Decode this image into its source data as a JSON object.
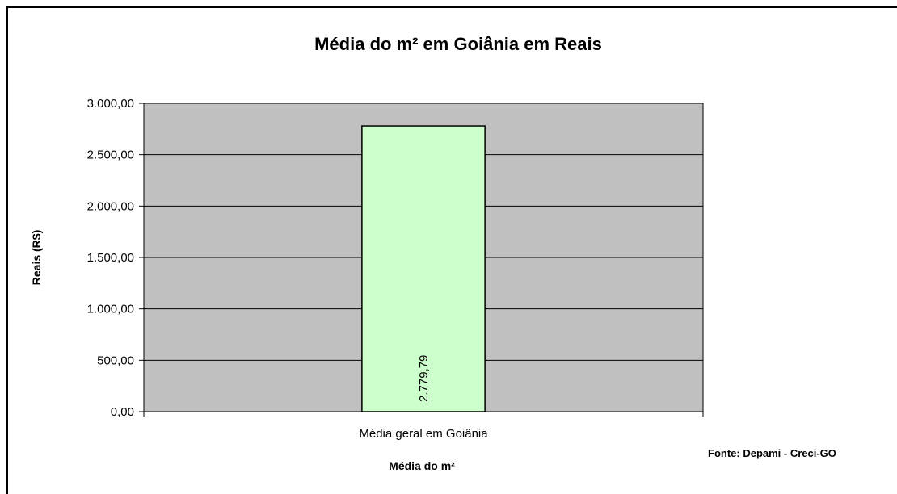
{
  "chart_data": {
    "type": "bar",
    "title": "Média do m² em Goiânia em Reais",
    "categories": [
      "Média geral em Goiânia"
    ],
    "series": [
      {
        "values": [
          2779.79
        ]
      }
    ],
    "data_labels": [
      "2.779,79"
    ],
    "xlabel": "Média do m²",
    "ylabel": "Reais (R$)",
    "ylim": [
      0,
      3000
    ],
    "yticks": [
      0,
      500,
      1000,
      1500,
      2000,
      2500,
      3000
    ],
    "ytick_labels": [
      "0,00",
      "500,00",
      "1.000,00",
      "1.500,00",
      "2.000,00",
      "2.500,00",
      "3.000,00"
    ],
    "grid": true,
    "legend": "none",
    "source_note": "Fonte: Depami - Creci-GO",
    "colors": {
      "bar_fill": "#ccffcc",
      "bar_stroke": "#000000",
      "plot_background": "#c0c0c0",
      "gridline": "#000000"
    }
  }
}
